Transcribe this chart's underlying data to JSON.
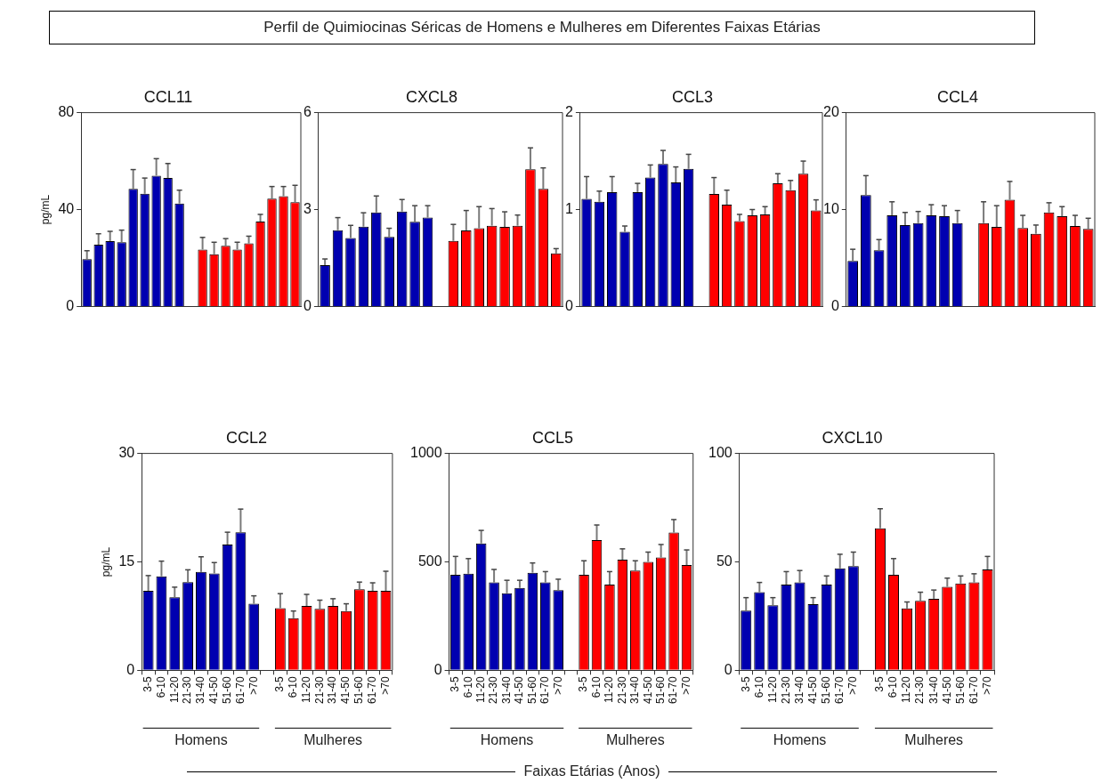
{
  "chart_data": [
    {
      "type": "other",
      "title": "Perfil de Quimiocinas Séricas de Homens e Mulheres em Diferentes Faixas Etárias",
      "annotations": [
        "Faixas Etárias (Anos)"
      ]
    },
    {
      "type": "bar",
      "title": "CCL11",
      "ylabel": "pg/mL",
      "ylim": [
        0,
        80
      ],
      "yticks": [
        0,
        40,
        80
      ],
      "tick_labels": "y",
      "legend": false,
      "categories": [
        null,
        null,
        null,
        null,
        null,
        null,
        null,
        null,
        null,
        null,
        null,
        null,
        null,
        null,
        null,
        null,
        null,
        null,
        null
      ],
      "series": [
        {
          "color": "#0000b0",
          "values": [
            19.5,
            25.5,
            27,
            26.5,
            48.5,
            46.5,
            54,
            53,
            42.5,
            null,
            null,
            null,
            null,
            null,
            null,
            null,
            null,
            null,
            null
          ],
          "errors": [
            [
              19.5,
              23
            ],
            [
              25.5,
              30
            ],
            [
              27,
              31
            ],
            [
              26.5,
              31.5
            ],
            [
              48.5,
              56.5
            ],
            [
              46.5,
              53
            ],
            [
              54,
              61
            ],
            [
              53,
              59
            ],
            [
              42.5,
              48
            ],
            null,
            null,
            null,
            null,
            null,
            null,
            null,
            null,
            null,
            null
          ]
        },
        {
          "color": "#ff0000",
          "values": [
            null,
            null,
            null,
            null,
            null,
            null,
            null,
            null,
            null,
            null,
            23.5,
            21.5,
            25,
            23.5,
            26,
            35,
            44.5,
            45.5,
            43
          ],
          "errors": [
            null,
            null,
            null,
            null,
            null,
            null,
            null,
            null,
            null,
            null,
            [
              23.5,
              28.5
            ],
            [
              21.5,
              26.5
            ],
            [
              25,
              28
            ],
            [
              23.5,
              26.5
            ],
            [
              26,
              29
            ],
            [
              35,
              38
            ],
            [
              44.5,
              49.5
            ],
            [
              45.5,
              49.5
            ],
            [
              43,
              50
            ]
          ]
        }
      ]
    },
    {
      "type": "bar",
      "title": "CXCL8",
      "ylim": [
        0,
        6
      ],
      "yticks": [
        0,
        3,
        6
      ],
      "tick_labels": "y",
      "legend": false,
      "categories": [
        null,
        null,
        null,
        null,
        null,
        null,
        null,
        null,
        null,
        null,
        null,
        null,
        null,
        null,
        null,
        null,
        null,
        null,
        null
      ],
      "series": [
        {
          "color": "#0000b0",
          "values": [
            1.28,
            2.36,
            2.12,
            2.47,
            2.91,
            2.15,
            2.94,
            2.62,
            2.75,
            null,
            null,
            null,
            null,
            null,
            null,
            null,
            null,
            null,
            null
          ],
          "errors": [
            [
              1.28,
              1.47
            ],
            [
              2.36,
              2.75
            ],
            [
              2.12,
              2.51
            ],
            [
              2.47,
              2.9
            ],
            [
              2.91,
              3.42
            ],
            [
              2.15,
              2.42
            ],
            [
              2.94,
              3.31
            ],
            [
              2.62,
              3.12
            ],
            [
              2.75,
              3.12
            ],
            null,
            null,
            null,
            null,
            null,
            null,
            null,
            null,
            null,
            null
          ]
        },
        {
          "color": "#ff0000",
          "values": [
            null,
            null,
            null,
            null,
            null,
            null,
            null,
            null,
            null,
            null,
            2.03,
            2.35,
            2.42,
            2.5,
            2.46,
            2.5,
            4.25,
            3.64,
            1.64
          ],
          "errors": [
            null,
            null,
            null,
            null,
            null,
            null,
            null,
            null,
            null,
            null,
            [
              2.03,
              2.54
            ],
            [
              2.35,
              2.97
            ],
            [
              2.42,
              3.09
            ],
            [
              2.5,
              3.03
            ],
            [
              2.46,
              2.93
            ],
            [
              2.5,
              2.83
            ],
            [
              4.25,
              4.91
            ],
            [
              3.64,
              4.29
            ],
            [
              1.64,
              1.79
            ]
          ]
        }
      ]
    },
    {
      "type": "bar",
      "title": "CCL3",
      "ylim": [
        0,
        2
      ],
      "yticks": [
        0,
        1,
        2
      ],
      "tick_labels": "y",
      "legend": false,
      "categories": [
        null,
        null,
        null,
        null,
        null,
        null,
        null,
        null,
        null,
        null,
        null,
        null,
        null,
        null,
        null,
        null,
        null,
        null,
        null
      ],
      "series": [
        {
          "color": "#0000b0",
          "values": [
            1.11,
            1.08,
            1.18,
            0.77,
            1.18,
            1.33,
            1.47,
            1.28,
            1.42,
            null,
            null,
            null,
            null,
            null,
            null,
            null,
            null,
            null,
            null
          ],
          "errors": [
            [
              1.11,
              1.34
            ],
            [
              1.08,
              1.19
            ],
            [
              1.18,
              1.34
            ],
            [
              0.77,
              0.83
            ],
            [
              1.18,
              1.27
            ],
            [
              1.33,
              1.46
            ],
            [
              1.47,
              1.61
            ],
            [
              1.28,
              1.44
            ],
            [
              1.42,
              1.57
            ],
            null,
            null,
            null,
            null,
            null,
            null,
            null,
            null,
            null,
            null
          ]
        },
        {
          "color": "#ff0000",
          "values": [
            null,
            null,
            null,
            null,
            null,
            null,
            null,
            null,
            null,
            null,
            1.16,
            1.05,
            0.88,
            0.94,
            0.95,
            1.27,
            1.2,
            1.37,
            0.99
          ],
          "errors": [
            null,
            null,
            null,
            null,
            null,
            null,
            null,
            null,
            null,
            null,
            [
              1.16,
              1.33
            ],
            [
              1.05,
              1.2
            ],
            [
              0.88,
              0.95
            ],
            [
              0.94,
              1
            ],
            [
              0.95,
              1.03
            ],
            [
              1.27,
              1.37
            ],
            [
              1.2,
              1.3
            ],
            [
              1.37,
              1.5
            ],
            [
              0.99,
              1.1
            ]
          ]
        }
      ]
    },
    {
      "type": "bar",
      "title": "CCL4",
      "ylim": [
        0,
        20
      ],
      "yticks": [
        0,
        10,
        20
      ],
      "tick_labels": "y",
      "legend": false,
      "categories": [
        null,
        null,
        null,
        null,
        null,
        null,
        null,
        null,
        null,
        null,
        null,
        null,
        null,
        null,
        null,
        null,
        null,
        null,
        null
      ],
      "series": [
        {
          "color": "#0000b0",
          "values": [
            4.7,
            11.5,
            5.8,
            9.4,
            8.4,
            8.6,
            9.4,
            9.3,
            8.6,
            null,
            null,
            null,
            null,
            null,
            null,
            null,
            null,
            null,
            null
          ],
          "errors": [
            [
              4.7,
              5.9
            ],
            [
              11.5,
              13.5
            ],
            [
              5.8,
              6.9
            ],
            [
              9.4,
              10.8
            ],
            [
              8.4,
              9.7
            ],
            [
              8.6,
              9.8
            ],
            [
              9.4,
              10.5
            ],
            [
              9.3,
              10.4
            ],
            [
              8.6,
              9.9
            ],
            null,
            null,
            null,
            null,
            null,
            null,
            null,
            null,
            null,
            null
          ]
        },
        {
          "color": "#ff0000",
          "values": [
            null,
            null,
            null,
            null,
            null,
            null,
            null,
            null,
            null,
            null,
            8.6,
            8.2,
            11,
            8.1,
            7.5,
            9.7,
            9.3,
            8.3,
            8
          ],
          "errors": [
            null,
            null,
            null,
            null,
            null,
            null,
            null,
            null,
            null,
            null,
            [
              8.6,
              10.8
            ],
            [
              8.2,
              10.4
            ],
            [
              11,
              12.9
            ],
            [
              8.1,
              9.4
            ],
            [
              7.5,
              8.4
            ],
            [
              9.7,
              10.7
            ],
            [
              9.3,
              10.3
            ],
            [
              8.3,
              9.4
            ],
            [
              8,
              9.1
            ]
          ]
        }
      ]
    },
    {
      "type": "bar",
      "title": "CCL2",
      "ylabel": "pg/mL",
      "ylim": [
        0,
        30
      ],
      "yticks": [
        0,
        15,
        30
      ],
      "legend": false,
      "annotations": [
        "Homens",
        "Mulheres"
      ],
      "categories": [
        "3-5",
        "6-10",
        "11-20",
        "21-30",
        "31-40",
        "41-50",
        "51-60",
        "61-70",
        ">70",
        null,
        "3-5",
        "6-10",
        "11-20",
        "21-30",
        "31-40",
        "41-50",
        "51-60",
        "61-70",
        ">70"
      ],
      "series": [
        {
          "color": "#0000b0",
          "values": [
            11,
            13,
            10.1,
            12.2,
            13.6,
            13.4,
            17.4,
            19.1,
            9.2,
            null,
            null,
            null,
            null,
            null,
            null,
            null,
            null,
            null,
            null
          ],
          "errors": [
            [
              11,
              13.1
            ],
            [
              13,
              15.1
            ],
            [
              10.1,
              11.5
            ],
            [
              12.2,
              13.9
            ],
            [
              13.6,
              15.7
            ],
            [
              13.4,
              14.9
            ],
            [
              17.4,
              19.1
            ],
            [
              19.1,
              22.3
            ],
            [
              9.2,
              10.3
            ],
            null,
            null,
            null,
            null,
            null,
            null,
            null,
            null,
            null,
            null
          ]
        },
        {
          "color": "#ff0000",
          "values": [
            null,
            null,
            null,
            null,
            null,
            null,
            null,
            null,
            null,
            null,
            8.6,
            7.2,
            8.9,
            8.5,
            8.9,
            8.2,
            11.2,
            11,
            11
          ],
          "errors": [
            null,
            null,
            null,
            null,
            null,
            null,
            null,
            null,
            null,
            null,
            [
              8.6,
              10.6
            ],
            [
              7.2,
              8.2
            ],
            [
              8.9,
              10.5
            ],
            [
              8.5,
              9.7
            ],
            [
              8.9,
              9.9
            ],
            [
              8.2,
              9.2
            ],
            [
              11.2,
              12.2
            ],
            [
              11,
              12.1
            ],
            [
              11,
              13.7
            ]
          ]
        }
      ]
    },
    {
      "type": "bar",
      "title": "CCL5",
      "ylim": [
        0,
        1000
      ],
      "yticks": [
        0,
        500,
        1000
      ],
      "legend": false,
      "annotations": [
        "Homens",
        "Mulheres"
      ],
      "categories": [
        "3-5",
        "6-10",
        "11-20",
        "21-30",
        "31-40",
        "41-50",
        "51-60",
        "61-70",
        ">70",
        null,
        "3-5",
        "6-10",
        "11-20",
        "21-30",
        "31-40",
        "41-50",
        "51-60",
        "61-70",
        ">70"
      ],
      "series": [
        {
          "color": "#0000b0",
          "values": [
            440,
            445,
            585,
            405,
            355,
            380,
            450,
            405,
            370,
            null,
            null,
            null,
            null,
            null,
            null,
            null,
            null,
            null,
            null
          ],
          "errors": [
            [
              440,
              525
            ],
            [
              445,
              515
            ],
            [
              585,
              645
            ],
            [
              405,
              465
            ],
            [
              355,
              415
            ],
            [
              380,
              415
            ],
            [
              450,
              495
            ],
            [
              405,
              455
            ],
            [
              370,
              420
            ],
            null,
            null,
            null,
            null,
            null,
            null,
            null,
            null,
            null,
            null
          ]
        },
        {
          "color": "#ff0000",
          "values": [
            null,
            null,
            null,
            null,
            null,
            null,
            null,
            null,
            null,
            null,
            440,
            600,
            395,
            510,
            460,
            500,
            520,
            635,
            485
          ],
          "errors": [
            null,
            null,
            null,
            null,
            null,
            null,
            null,
            null,
            null,
            null,
            [
              440,
              505
            ],
            [
              600,
              670
            ],
            [
              395,
              455
            ],
            [
              510,
              560
            ],
            [
              460,
              505
            ],
            [
              500,
              545
            ],
            [
              520,
              580
            ],
            [
              635,
              695
            ],
            [
              485,
              555
            ]
          ]
        }
      ]
    },
    {
      "type": "bar",
      "title": "CXCL10",
      "ylim": [
        0,
        100
      ],
      "yticks": [
        0,
        50,
        100
      ],
      "legend": false,
      "annotations": [
        "Homens",
        "Mulheres"
      ],
      "categories": [
        "3-5",
        "6-10",
        "11-20",
        "21-30",
        "31-40",
        "41-50",
        "51-60",
        "61-70",
        ">70",
        null,
        "3-5",
        "6-10",
        "11-20",
        "21-30",
        "31-40",
        "41-50",
        "51-60",
        "61-70",
        ">70"
      ],
      "series": [
        {
          "color": "#0000b0",
          "values": [
            27.5,
            36,
            30,
            39.5,
            40.5,
            30.5,
            39.5,
            47,
            48,
            null,
            null,
            null,
            null,
            null,
            null,
            null,
            null,
            null,
            null
          ],
          "errors": [
            [
              27.5,
              33.5
            ],
            [
              36,
              40.5
            ],
            [
              30,
              33.5
            ],
            [
              39.5,
              45.5
            ],
            [
              40.5,
              46
            ],
            [
              30.5,
              33.5
            ],
            [
              39.5,
              43.5
            ],
            [
              47,
              53.5
            ],
            [
              48,
              54.5
            ],
            null,
            null,
            null,
            null,
            null,
            null,
            null,
            null,
            null,
            null
          ]
        },
        {
          "color": "#ff0000",
          "values": [
            null,
            null,
            null,
            null,
            null,
            null,
            null,
            null,
            null,
            null,
            65.5,
            44,
            28.5,
            32,
            33,
            38.5,
            40,
            40.5,
            46.5
          ],
          "errors": [
            null,
            null,
            null,
            null,
            null,
            null,
            null,
            null,
            null,
            null,
            [
              65.5,
              74.5
            ],
            [
              44,
              51.5
            ],
            [
              28.5,
              31.5
            ],
            [
              32,
              36
            ],
            [
              33,
              37
            ],
            [
              38.5,
              42.5
            ],
            [
              40,
              43.5
            ],
            [
              40.5,
              44.5
            ],
            [
              46.5,
              52.5
            ]
          ]
        }
      ]
    }
  ]
}
